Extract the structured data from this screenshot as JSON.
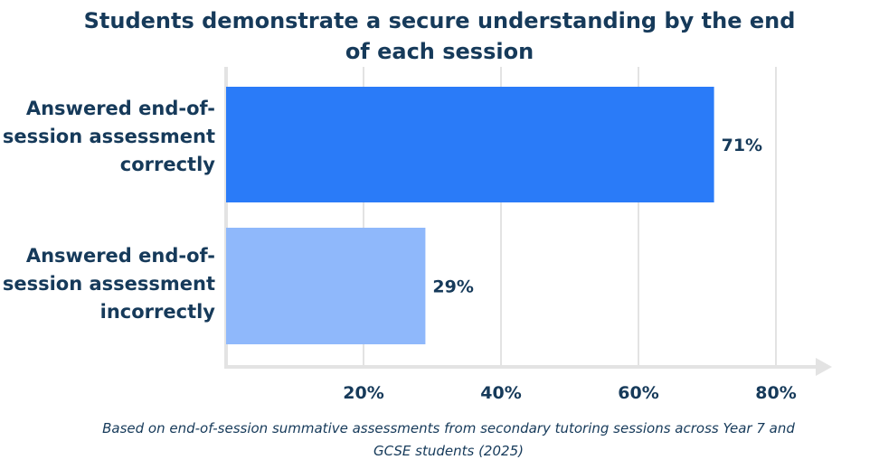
{
  "chart_data": {
    "type": "bar",
    "orientation": "horizontal",
    "title": "Students demonstrate a secure understanding by the end of each session",
    "categories": [
      "Answered end-of-session assessment correctly",
      "Answered end-of-session assessment incorrectly"
    ],
    "values": [
      71,
      29
    ],
    "value_labels": [
      "71%",
      "29%"
    ],
    "bar_colors": [
      "#2a7bf8",
      "#8fb8fb"
    ],
    "xlim": [
      0,
      80
    ],
    "x_ticks": [
      20,
      40,
      60,
      80
    ],
    "x_tick_labels": [
      "20%",
      "40%",
      "60%",
      "80%"
    ],
    "grid": true,
    "caption": "Based on end-of-session summative assessments from secondary tutoring sessions across Year 7 and GCSE students (2025)"
  },
  "colors": {
    "text": "#163a5a",
    "grid": "#e3e3e3",
    "axis": "#e3e3e3"
  }
}
